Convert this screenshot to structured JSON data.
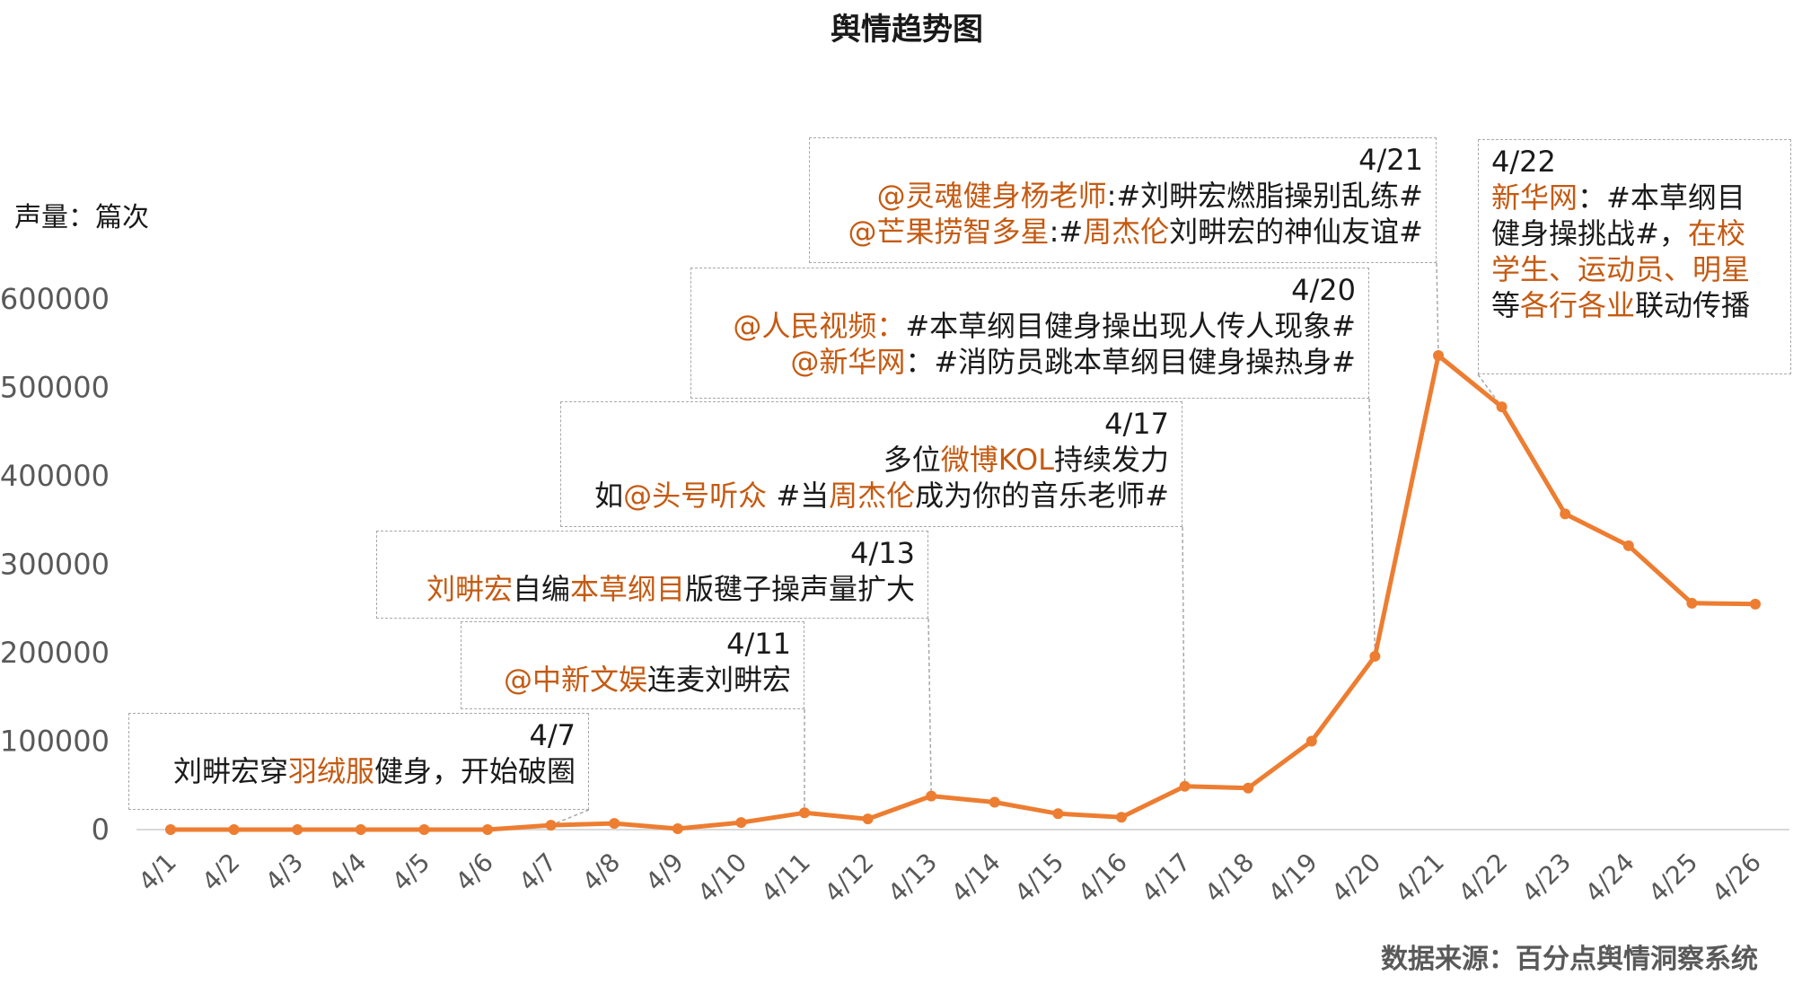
{
  "chart_data": {
    "type": "line",
    "title": "舆情趋势图",
    "ylabel": "声量：篇次",
    "xlabel": "",
    "categories": [
      "4/1",
      "4/2",
      "4/3",
      "4/4",
      "4/5",
      "4/6",
      "4/7",
      "4/8",
      "4/9",
      "4/10",
      "4/11",
      "4/12",
      "4/13",
      "4/14",
      "4/15",
      "4/16",
      "4/17",
      "4/18",
      "4/19",
      "4/20",
      "4/21",
      "4/22",
      "4/23",
      "4/24",
      "4/25",
      "4/26"
    ],
    "series": [
      {
        "values": [
          0,
          0,
          0,
          0,
          0,
          0,
          5000,
          7000,
          1000,
          8000,
          19000,
          12000,
          38000,
          31000,
          18000,
          14000,
          49000,
          47000,
          100000,
          196000,
          536000,
          478000,
          357000,
          321000,
          256000,
          255000
        ]
      }
    ],
    "ylim": [
      0,
      600000
    ],
    "yticks": [
      0,
      100000,
      200000,
      300000,
      400000,
      500000,
      600000
    ],
    "grid": false,
    "legend": "none",
    "line_color": "#ed7d31",
    "highlight_color": "#c55a11",
    "source": "数据来源：百分点舆情洞察系统",
    "annotations": [
      {
        "date": "4/7",
        "align": "right",
        "lines": [
          [
            {
              "t": "刘畊宏穿"
            },
            {
              "t": "羽绒服",
              "hl": true
            },
            {
              "t": "健身，开始破圈"
            }
          ]
        ]
      },
      {
        "date": "4/11",
        "align": "right",
        "lines": [
          [
            {
              "t": "@中新文娱",
              "hl": true
            },
            {
              "t": "连麦刘畊宏"
            }
          ]
        ]
      },
      {
        "date": "4/13",
        "align": "right",
        "lines": [
          [
            {
              "t": "刘畊宏",
              "hl": true
            },
            {
              "t": "自编"
            },
            {
              "t": "本草纲目",
              "hl": true
            },
            {
              "t": "版毽子操声量扩大"
            }
          ]
        ]
      },
      {
        "date": "4/17",
        "align": "right",
        "lines": [
          [
            {
              "t": "多位"
            },
            {
              "t": "微博KOL",
              "hl": true
            },
            {
              "t": "持续发力"
            }
          ],
          [
            {
              "t": "如"
            },
            {
              "t": "@头号听众",
              "hl": true
            },
            {
              "t": " #当"
            },
            {
              "t": "周杰伦",
              "hl": true
            },
            {
              "t": "成为你的音乐老师#"
            }
          ]
        ]
      },
      {
        "date": "4/20",
        "align": "right",
        "lines": [
          [
            {
              "t": "@人民视频：",
              "hl": true
            },
            {
              "t": "#本草纲目健身操出现人传人现象#"
            }
          ],
          [
            {
              "t": "@新华网",
              "hl": true
            },
            {
              "t": "：#消防员跳本草纲目健身操热身#"
            }
          ]
        ]
      },
      {
        "date": "4/21",
        "align": "right",
        "lines": [
          [
            {
              "t": "@灵魂健身杨老师",
              "hl": true
            },
            {
              "t": ":#刘畊宏燃脂操别乱练#"
            }
          ],
          [
            {
              "t": "@芒果捞智多星",
              "hl": true
            },
            {
              "t": ":#"
            },
            {
              "t": "周杰伦",
              "hl": true
            },
            {
              "t": "刘畊宏的神仙友谊#"
            }
          ]
        ]
      },
      {
        "date": "4/22",
        "align": "left",
        "lines": [
          [
            {
              "t": "新华网",
              "hl": true
            },
            {
              "t": "：#本草纲目"
            }
          ],
          [
            {
              "t": "健身操挑战#，"
            },
            {
              "t": "在校",
              "hl": true
            }
          ],
          [
            {
              "t": "学生、运动员、明星",
              "hl": true
            }
          ],
          [
            {
              "t": "等"
            },
            {
              "t": "各行各业",
              "hl": true
            },
            {
              "t": "联动传播"
            }
          ]
        ]
      }
    ]
  }
}
